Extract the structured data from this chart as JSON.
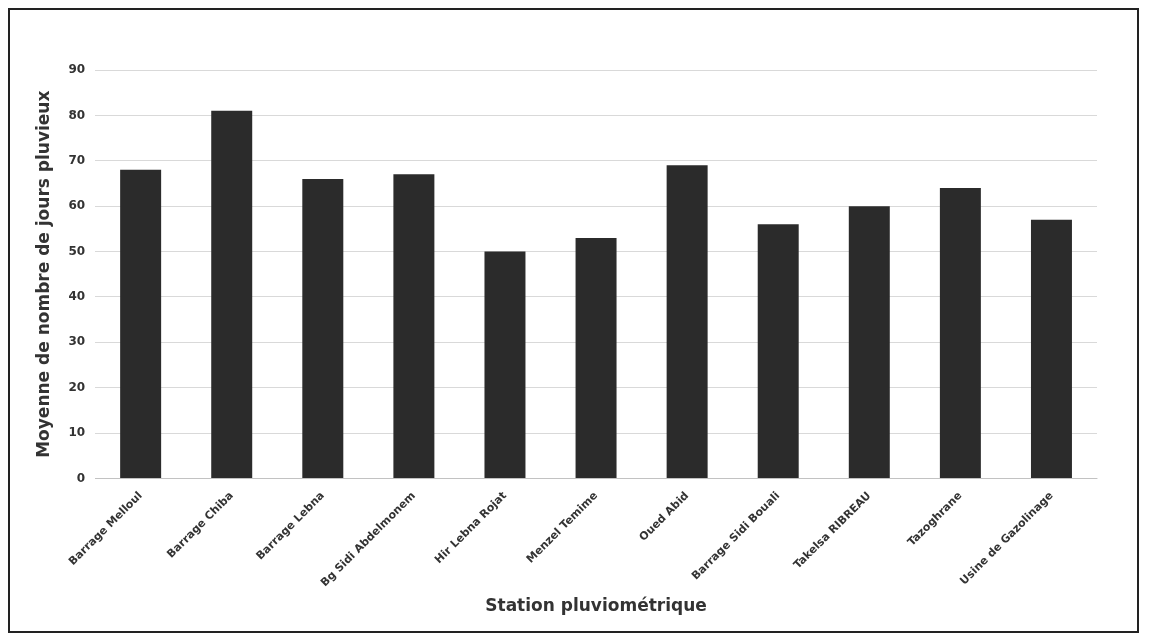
{
  "chart_data": {
    "type": "bar",
    "xlabel": "Station pluviométrique",
    "ylabel": "Moyenne de nombre de jours pluvieux",
    "categories": [
      "Barrage Melloul",
      "Barrage Chiba",
      "Barrage Lebna",
      "Bg Sidi Abdelmonem",
      "Hir Lebna Rojat",
      "Menzel Temime",
      "Oued Abid",
      "Barrage Sidi Bouali",
      "Takelsa RIBREAU",
      "Tazoghrane",
      "Usine de Gazolinage"
    ],
    "values": [
      68,
      81,
      66,
      67,
      50,
      53,
      69,
      56,
      60,
      64,
      57
    ],
    "color": "#2b2b2b",
    "ylim": [
      0,
      90
    ],
    "yticks": [
      0,
      10,
      20,
      30,
      40,
      50,
      60,
      70,
      80,
      90
    ],
    "grid": "y"
  }
}
